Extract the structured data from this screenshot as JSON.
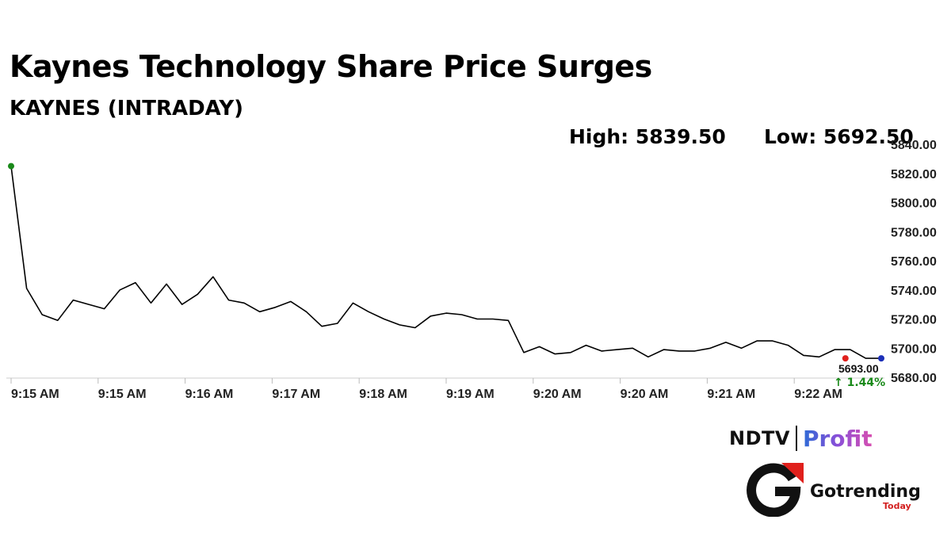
{
  "header": {
    "title": "Kaynes Technology Share Price Surges",
    "subtitle": "KAYNES (INTRADAY)",
    "high_label": "High: 5839.50",
    "low_label": "Low: 5692.50"
  },
  "chart_data": {
    "type": "line",
    "title": "Kaynes Technology Share Price Surges",
    "subtitle": "KAYNES (INTRADAY)",
    "xlabel": "",
    "ylabel": "",
    "x_tick_labels": [
      "9:15 AM",
      "9:15 AM",
      "9:16 AM",
      "9:17 AM",
      "9:18 AM",
      "9:19 AM",
      "9:20 AM",
      "9:20 AM",
      "9:21 AM",
      "9:22 AM"
    ],
    "y_ticks": [
      5680,
      5700,
      5720,
      5740,
      5760,
      5780,
      5800,
      5820,
      5840
    ],
    "y_tick_labels": [
      "5680.00",
      "5700.00",
      "5720.00",
      "5740.00",
      "5760.00",
      "5780.00",
      "5800.00",
      "5820.00",
      "5840.00"
    ],
    "ylim": [
      5680,
      5840
    ],
    "grid": false,
    "high": 5839.5,
    "low": 5692.5,
    "last_value_label": "5693.00",
    "change_label": "↑ 1.44%",
    "series": [
      {
        "color": "#000000",
        "values": [
          5825,
          5741,
          5723,
          5719,
          5733,
          5730,
          5727,
          5740,
          5745,
          5731,
          5744,
          5730,
          5737,
          5749,
          5733,
          5731,
          5725,
          5728,
          5732,
          5725,
          5715,
          5717,
          5731,
          5725,
          5720,
          5716,
          5714,
          5722,
          5724,
          5723,
          5720,
          5720,
          5719,
          5697,
          5701,
          5696,
          5697,
          5702,
          5698,
          5699,
          5700,
          5694,
          5699,
          5698,
          5698,
          5700,
          5704,
          5700,
          5705,
          5705,
          5702,
          5695,
          5694,
          5699,
          5699,
          5693,
          5693
        ]
      }
    ],
    "markers": [
      {
        "label": "start",
        "color": "#1a8a1a"
      },
      {
        "label": "low",
        "color": "#e0201c"
      },
      {
        "label": "last",
        "color": "#1c2fb8"
      }
    ]
  },
  "brands": {
    "ndtv": "NDTV",
    "profit": "Profit",
    "gotrending": "Gotrending",
    "gotrending_sub": "Today"
  }
}
